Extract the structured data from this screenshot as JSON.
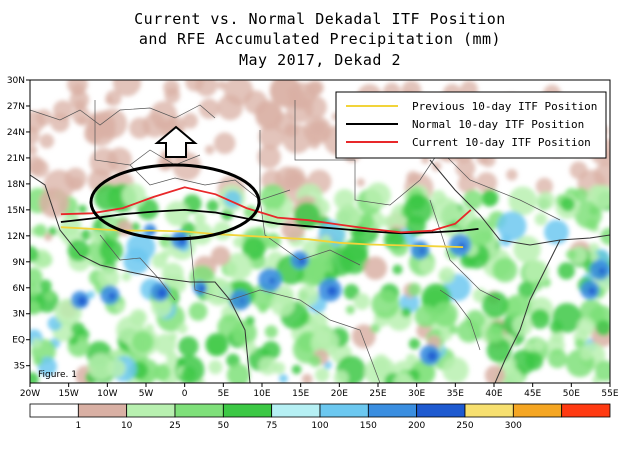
{
  "title": {
    "line1": "Current vs. Normal Dekadal ITF Position",
    "line2": "and RFE Accumulated Precipitation (mm)",
    "line3": "May 2017, Dekad 2"
  },
  "map": {
    "lon_range": [
      -20,
      55
    ],
    "lat_range": [
      -5,
      30
    ],
    "x_ticks": [
      "20W",
      "15W",
      "10W",
      "5W",
      "0",
      "5E",
      "10E",
      "15E",
      "20E",
      "25E",
      "30E",
      "35E",
      "40E",
      "45E",
      "50E",
      "55E"
    ],
    "y_ticks": [
      "30N",
      "27N",
      "24N",
      "21N",
      "18N",
      "15N",
      "12N",
      "9N",
      "6N",
      "3N",
      "EQ",
      "3S"
    ],
    "figure_label": "Figure. 1"
  },
  "legend": {
    "items": [
      {
        "label": "Previous 10-day ITF Position",
        "color": "#f2d43a"
      },
      {
        "label": "Normal 10-day ITF Position",
        "color": "#000000"
      },
      {
        "label": "Current 10-day ITF Position",
        "color": "#e8282a"
      }
    ]
  },
  "itf_lines": {
    "previous": [
      [
        -16,
        13.0
      ],
      [
        -12,
        12.8
      ],
      [
        -8,
        12.6
      ],
      [
        -4,
        12.6
      ],
      [
        0,
        12.5
      ],
      [
        4,
        12.2
      ],
      [
        8,
        12.0
      ],
      [
        12,
        11.8
      ],
      [
        16,
        11.6
      ],
      [
        20,
        11.2
      ],
      [
        24,
        11.0
      ],
      [
        28,
        10.9
      ],
      [
        32,
        10.8
      ],
      [
        36,
        10.7
      ]
    ],
    "normal": [
      [
        -16,
        13.6
      ],
      [
        -12,
        14.0
      ],
      [
        -8,
        14.5
      ],
      [
        -4,
        14.8
      ],
      [
        0,
        15.0
      ],
      [
        4,
        14.7
      ],
      [
        8,
        14.0
      ],
      [
        12,
        13.4
      ],
      [
        16,
        13.1
      ],
      [
        20,
        12.8
      ],
      [
        24,
        12.5
      ],
      [
        28,
        12.3
      ],
      [
        32,
        12.4
      ],
      [
        36,
        12.6
      ],
      [
        38,
        12.8
      ]
    ],
    "current": [
      [
        -16,
        14.5
      ],
      [
        -12,
        14.6
      ],
      [
        -8,
        15.2
      ],
      [
        -4,
        16.5
      ],
      [
        0,
        17.6
      ],
      [
        4,
        16.8
      ],
      [
        8,
        15.2
      ],
      [
        12,
        14.1
      ],
      [
        16,
        13.8
      ],
      [
        20,
        13.3
      ],
      [
        24,
        12.8
      ],
      [
        28,
        12.4
      ],
      [
        32,
        12.6
      ],
      [
        35,
        13.4
      ],
      [
        37,
        15.0
      ]
    ]
  },
  "colorbar": {
    "colors": [
      "#ffffff",
      "#d9b0a4",
      "#b8f0b0",
      "#7fe07a",
      "#3cc845",
      "#b6f0f4",
      "#6cc8f0",
      "#3a8ee0",
      "#1e5ad0",
      "#f7e070",
      "#f5a623",
      "#ff3a12"
    ],
    "labels": [
      "1",
      "10",
      "25",
      "50",
      "75",
      "100",
      "150",
      "200",
      "250",
      "300"
    ]
  },
  "annotations": {
    "arrow": "up-arrow",
    "ellipse": "highlight-ellipse"
  }
}
